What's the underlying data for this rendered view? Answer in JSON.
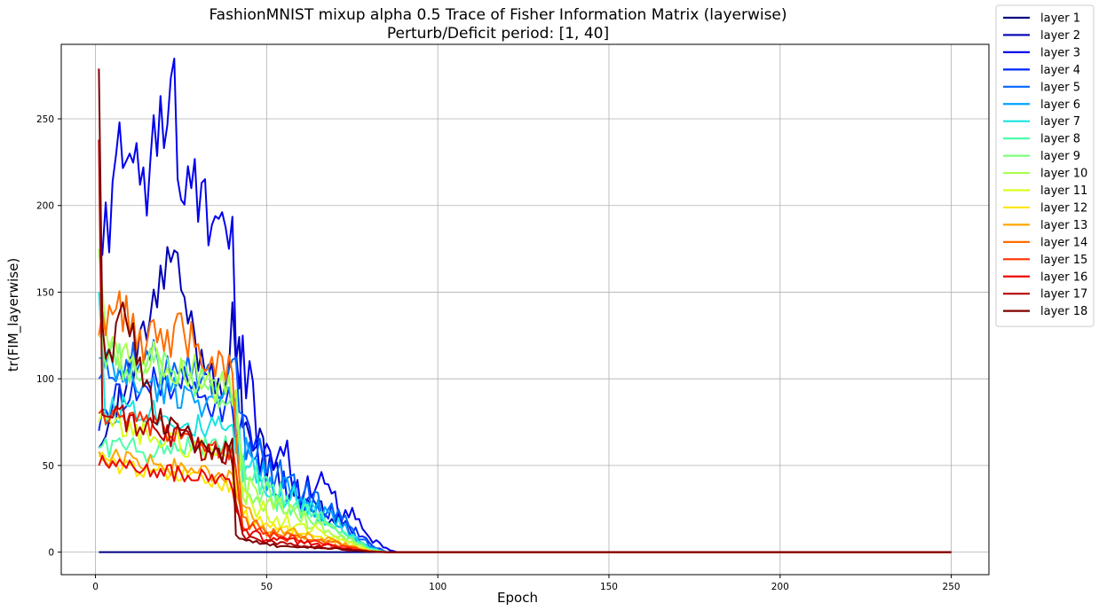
{
  "chart_data": {
    "type": "line",
    "title": "FashionMNIST mixup alpha 0.5 Trace of Fisher Information Matrix (layerwise)",
    "subtitle": "Perturb/Deficit period: [1, 40]",
    "xlabel": "Epoch",
    "ylabel": "tr(FIM_layerwise)",
    "xlim": [
      -10,
      261
    ],
    "ylim": [
      -13,
      293
    ],
    "xticks": [
      0,
      50,
      100,
      150,
      200,
      250
    ],
    "yticks": [
      0,
      50,
      100,
      150,
      200,
      250
    ],
    "grid": true,
    "legend_position": "outside-right",
    "epoch_range": [
      1,
      250
    ],
    "series": [
      {
        "name": "layer 1",
        "color": "#00007f",
        "anchors": [
          [
            1,
            0
          ],
          [
            40,
            0
          ],
          [
            250,
            0
          ]
        ]
      },
      {
        "name": "layer 2",
        "color": "#0000b5",
        "anchors": [
          [
            1,
            60
          ],
          [
            5,
            80
          ],
          [
            12,
            110
          ],
          [
            22,
            172
          ],
          [
            30,
            115
          ],
          [
            38,
            95
          ],
          [
            40,
            130
          ],
          [
            43,
            88
          ],
          [
            50,
            48
          ],
          [
            60,
            30
          ],
          [
            70,
            20
          ],
          [
            80,
            2
          ],
          [
            85,
            0
          ],
          [
            250,
            0
          ]
        ]
      },
      {
        "name": "layer 3",
        "color": "#0000ed",
        "anchors": [
          [
            1,
            170
          ],
          [
            2,
            178
          ],
          [
            5,
            200
          ],
          [
            6,
            256
          ],
          [
            10,
            215
          ],
          [
            15,
            210
          ],
          [
            22,
            280
          ],
          [
            25,
            215
          ],
          [
            30,
            205
          ],
          [
            36,
            175
          ],
          [
            40,
            192
          ],
          [
            41,
            105
          ],
          [
            45,
            95
          ],
          [
            48,
            62
          ],
          [
            55,
            55
          ],
          [
            60,
            35
          ],
          [
            65,
            40
          ],
          [
            70,
            28
          ],
          [
            75,
            20
          ],
          [
            80,
            8
          ],
          [
            85,
            2
          ],
          [
            88,
            0
          ],
          [
            250,
            0
          ]
        ]
      },
      {
        "name": "layer 4",
        "color": "#0028ff",
        "anchors": [
          [
            1,
            70
          ],
          [
            5,
            90
          ],
          [
            15,
            95
          ],
          [
            25,
            100
          ],
          [
            35,
            80
          ],
          [
            40,
            88
          ],
          [
            43,
            80
          ],
          [
            50,
            48
          ],
          [
            60,
            32
          ],
          [
            70,
            22
          ],
          [
            80,
            5
          ],
          [
            85,
            0
          ],
          [
            250,
            0
          ]
        ]
      },
      {
        "name": "layer 5",
        "color": "#0064ff",
        "anchors": [
          [
            1,
            100
          ],
          [
            5,
            108
          ],
          [
            15,
            110
          ],
          [
            25,
            112
          ],
          [
            35,
            95
          ],
          [
            40,
            100
          ],
          [
            43,
            70
          ],
          [
            50,
            50
          ],
          [
            60,
            35
          ],
          [
            70,
            22
          ],
          [
            80,
            4
          ],
          [
            85,
            0
          ],
          [
            250,
            0
          ]
        ]
      },
      {
        "name": "layer 6",
        "color": "#00a4ff",
        "anchors": [
          [
            1,
            112
          ],
          [
            5,
            105
          ],
          [
            15,
            95
          ],
          [
            25,
            92
          ],
          [
            35,
            85
          ],
          [
            40,
            88
          ],
          [
            43,
            58
          ],
          [
            50,
            42
          ],
          [
            60,
            30
          ],
          [
            70,
            18
          ],
          [
            80,
            3
          ],
          [
            85,
            0
          ],
          [
            250,
            0
          ]
        ]
      },
      {
        "name": "layer 7",
        "color": "#19e3e3",
        "anchors": [
          [
            1,
            150
          ],
          [
            3,
            80
          ],
          [
            10,
            85
          ],
          [
            20,
            80
          ],
          [
            30,
            72
          ],
          [
            40,
            70
          ],
          [
            43,
            50
          ],
          [
            50,
            38
          ],
          [
            60,
            28
          ],
          [
            70,
            18
          ],
          [
            80,
            2
          ],
          [
            85,
            0
          ],
          [
            250,
            0
          ]
        ]
      },
      {
        "name": "layer 8",
        "color": "#4effa9",
        "anchors": [
          [
            1,
            60
          ],
          [
            5,
            62
          ],
          [
            15,
            58
          ],
          [
            25,
            62
          ],
          [
            35,
            60
          ],
          [
            40,
            62
          ],
          [
            43,
            45
          ],
          [
            50,
            35
          ],
          [
            60,
            25
          ],
          [
            70,
            15
          ],
          [
            80,
            2
          ],
          [
            85,
            0
          ],
          [
            250,
            0
          ]
        ]
      },
      {
        "name": "layer 9",
        "color": "#7dff7a",
        "anchors": [
          [
            1,
            125
          ],
          [
            5,
            110
          ],
          [
            15,
            108
          ],
          [
            25,
            105
          ],
          [
            35,
            92
          ],
          [
            40,
            90
          ],
          [
            43,
            42
          ],
          [
            50,
            32
          ],
          [
            60,
            22
          ],
          [
            70,
            12
          ],
          [
            80,
            1
          ],
          [
            85,
            0
          ],
          [
            250,
            0
          ]
        ]
      },
      {
        "name": "layer 10",
        "color": "#a9ff4e",
        "anchors": [
          [
            1,
            175
          ],
          [
            4,
            115
          ],
          [
            15,
            112
          ],
          [
            25,
            108
          ],
          [
            35,
            95
          ],
          [
            40,
            92
          ],
          [
            43,
            38
          ],
          [
            50,
            28
          ],
          [
            60,
            20
          ],
          [
            70,
            10
          ],
          [
            80,
            1
          ],
          [
            85,
            0
          ],
          [
            250,
            0
          ]
        ]
      },
      {
        "name": "layer 11",
        "color": "#d7ff1f",
        "anchors": [
          [
            1,
            75
          ],
          [
            5,
            72
          ],
          [
            15,
            68
          ],
          [
            25,
            62
          ],
          [
            35,
            58
          ],
          [
            40,
            55
          ],
          [
            43,
            30
          ],
          [
            50,
            22
          ],
          [
            60,
            15
          ],
          [
            70,
            8
          ],
          [
            80,
            1
          ],
          [
            85,
            0
          ],
          [
            250,
            0
          ]
        ]
      },
      {
        "name": "layer 12",
        "color": "#ffe600",
        "anchors": [
          [
            1,
            55
          ],
          [
            5,
            50
          ],
          [
            15,
            48
          ],
          [
            25,
            45
          ],
          [
            35,
            40
          ],
          [
            40,
            38
          ],
          [
            43,
            20
          ],
          [
            50,
            15
          ],
          [
            60,
            10
          ],
          [
            70,
            6
          ],
          [
            80,
            0.5
          ],
          [
            85,
            0
          ],
          [
            250,
            0
          ]
        ]
      },
      {
        "name": "layer 13",
        "color": "#ffa700",
        "anchors": [
          [
            1,
            58
          ],
          [
            5,
            55
          ],
          [
            15,
            52
          ],
          [
            25,
            48
          ],
          [
            35,
            45
          ],
          [
            40,
            42
          ],
          [
            43,
            22
          ],
          [
            50,
            15
          ],
          [
            60,
            10
          ],
          [
            70,
            6
          ],
          [
            80,
            0.5
          ],
          [
            85,
            0
          ],
          [
            250,
            0
          ]
        ]
      },
      {
        "name": "layer 14",
        "color": "#ff6d00",
        "anchors": [
          [
            1,
            125
          ],
          [
            4,
            145
          ],
          [
            15,
            120
          ],
          [
            25,
            128
          ],
          [
            35,
            110
          ],
          [
            40,
            105
          ],
          [
            43,
            18
          ],
          [
            50,
            12
          ],
          [
            60,
            8
          ],
          [
            70,
            5
          ],
          [
            80,
            0.5
          ],
          [
            85,
            0
          ],
          [
            250,
            0
          ]
        ]
      },
      {
        "name": "layer 15",
        "color": "#ff3000",
        "anchors": [
          [
            1,
            80
          ],
          [
            5,
            78
          ],
          [
            15,
            72
          ],
          [
            25,
            68
          ],
          [
            35,
            60
          ],
          [
            40,
            58
          ],
          [
            43,
            15
          ],
          [
            50,
            10
          ],
          [
            60,
            7
          ],
          [
            70,
            4
          ],
          [
            80,
            0.5
          ],
          [
            85,
            0
          ],
          [
            250,
            0
          ]
        ]
      },
      {
        "name": "layer 16",
        "color": "#ed0400",
        "anchors": [
          [
            1,
            50
          ],
          [
            5,
            52
          ],
          [
            15,
            48
          ],
          [
            25,
            45
          ],
          [
            35,
            42
          ],
          [
            40,
            40
          ],
          [
            43,
            12
          ],
          [
            50,
            8
          ],
          [
            60,
            6
          ],
          [
            70,
            3
          ],
          [
            80,
            0.5
          ],
          [
            85,
            0
          ],
          [
            250,
            0
          ]
        ]
      },
      {
        "name": "layer 17",
        "color": "#b60000",
        "anchors": [
          [
            1,
            238
          ],
          [
            2,
            80
          ],
          [
            10,
            75
          ],
          [
            20,
            70
          ],
          [
            30,
            60
          ],
          [
            40,
            55
          ],
          [
            43,
            8
          ],
          [
            50,
            6
          ],
          [
            60,
            4
          ],
          [
            70,
            2
          ],
          [
            80,
            0.3
          ],
          [
            85,
            0
          ],
          [
            250,
            0
          ]
        ]
      },
      {
        "name": "layer 18",
        "color": "#7f0000",
        "anchors": [
          [
            1,
            279
          ],
          [
            2,
            120
          ],
          [
            5,
            122
          ],
          [
            9,
            142
          ],
          [
            15,
            90
          ],
          [
            20,
            75
          ],
          [
            25,
            70
          ],
          [
            30,
            60
          ],
          [
            35,
            55
          ],
          [
            40,
            60
          ],
          [
            41,
            8
          ],
          [
            50,
            4
          ],
          [
            60,
            3
          ],
          [
            70,
            2
          ],
          [
            80,
            0.3
          ],
          [
            85,
            0
          ],
          [
            250,
            0
          ]
        ]
      }
    ]
  }
}
